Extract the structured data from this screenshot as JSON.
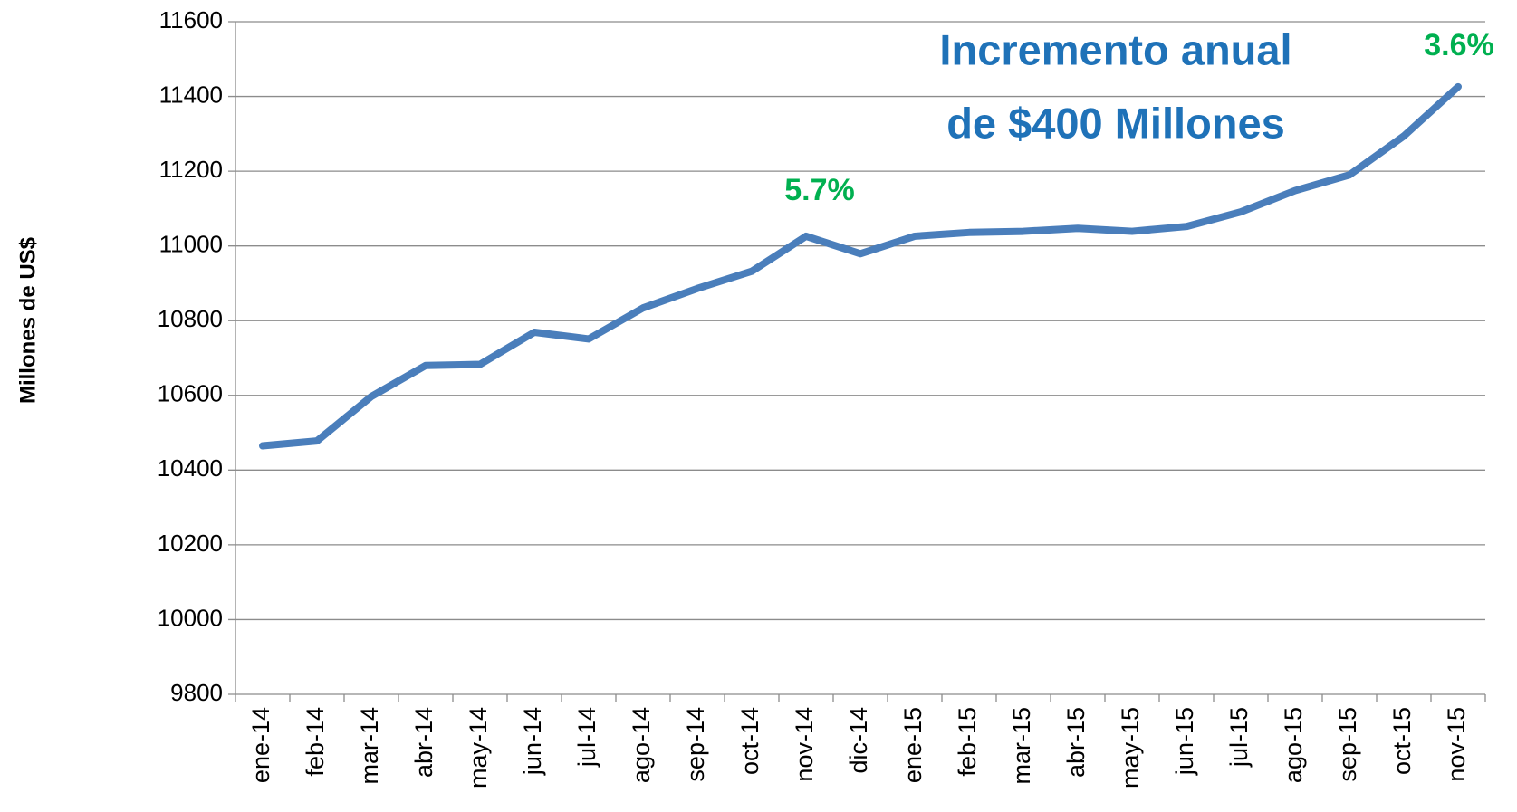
{
  "chart_data": {
    "type": "line",
    "y_axis_label": "Millones de US$",
    "annotations": [
      "Incremento anual",
      "de $400 Millones",
      "5.7%",
      "3.6%"
    ],
    "categories": [
      "ene-14",
      "feb-14",
      "mar-14",
      "abr-14",
      "may-14",
      "jun-14",
      "jul-14",
      "ago-14",
      "sep-14",
      "oct-14",
      "nov-14",
      "dic-14",
      "ene-15",
      "feb-15",
      "mar-15",
      "abr-15",
      "may-15",
      "jun-15",
      "jul-15",
      "ago-15",
      "sep-15",
      "oct-15",
      "nov-15"
    ],
    "series": [
      {
        "name": "Millones de US$",
        "color": "#4a7ebb",
        "values": [
          10465,
          10478,
          10597,
          10680,
          10683,
          10769,
          10751,
          10834,
          10886,
          10932,
          11026,
          10979,
          11026,
          11036,
          11039,
          11047,
          11039,
          11052,
          11091,
          11148,
          11190,
          11294,
          11426
        ]
      }
    ],
    "ylim": [
      9800,
      11600
    ],
    "yticks": [
      9800,
      10000,
      10200,
      10400,
      10600,
      10800,
      11000,
      11200,
      11400,
      11600
    ],
    "grid": true
  }
}
